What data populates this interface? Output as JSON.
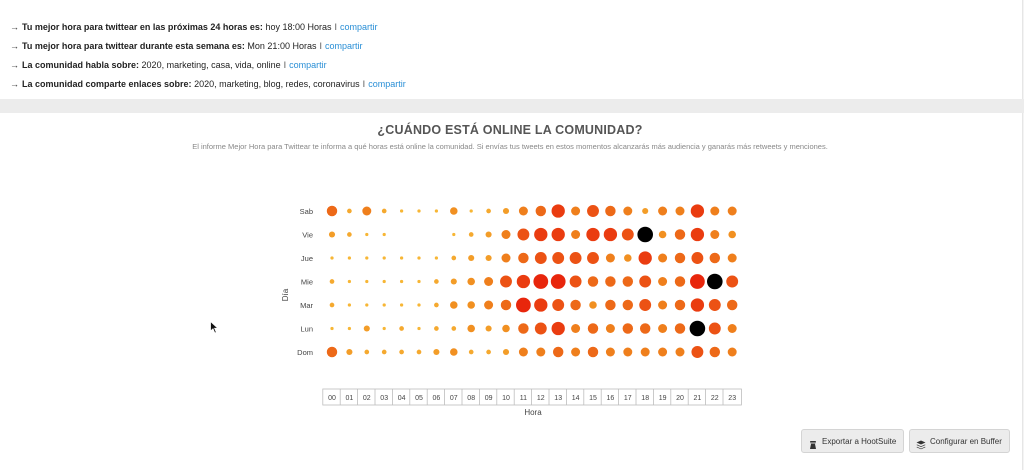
{
  "insights": [
    {
      "arrow": "→",
      "label": "Tu mejor hora para twittear en las próximas 24 horas es:",
      "value": "hoy 18:00 Horas",
      "separator": "I",
      "link": "compartir"
    },
    {
      "arrow": "→",
      "label": "Tu mejor hora para twittear durante esta semana es:",
      "value": "Mon 21:00 Horas",
      "separator": "I",
      "link": "compartir"
    },
    {
      "arrow": "→",
      "label": "La comunidad habla sobre:",
      "value": "2020, marketing, casa, vida, online",
      "separator": "I",
      "link": "compartir"
    },
    {
      "arrow": "→",
      "label": "La comunidad comparte enlaces sobre:",
      "value": "2020, marketing, blog, redes, coronavirus",
      "separator": "I",
      "link": "compartir"
    }
  ],
  "section": {
    "title": "¿CUÁNDO ESTÁ ONLINE LA COMUNIDAD?",
    "description": "El informe Mejor Hora para Twittear te informa a qué horas está online la comunidad. Si envías tus tweets en estos momentos alcanzarás más audiencia y ganarás más retweets y menciones."
  },
  "buttons": {
    "hootsuite": "Exportar a HootSuite",
    "buffer": "Configurar en Buffer"
  },
  "colors": {
    "link": "#2a8fd6",
    "scale_low": "#f9c23c",
    "scale_mid": "#f08a1e",
    "scale_high": "#e8260c",
    "peak": "#000000"
  },
  "chart_data": {
    "type": "heatmap",
    "xlabel": "Hora",
    "ylabel": "Día",
    "x": [
      "00",
      "01",
      "02",
      "03",
      "04",
      "05",
      "06",
      "07",
      "08",
      "09",
      "10",
      "11",
      "12",
      "13",
      "14",
      "15",
      "16",
      "17",
      "18",
      "19",
      "20",
      "21",
      "22",
      "23"
    ],
    "y": [
      "Sab",
      "Vie",
      "Jue",
      "Mie",
      "Mar",
      "Lun",
      "Dom"
    ],
    "scale": "relative activity 0–10 (dot size and colour); black = peak",
    "values": [
      [
        6,
        2,
        5,
        2,
        1,
        1,
        1,
        4,
        1,
        2,
        3,
        5,
        6,
        8,
        5,
        7,
        6,
        5,
        3,
        5,
        5,
        8,
        5,
        5
      ],
      [
        3,
        2,
        1,
        1,
        0,
        0,
        0,
        1,
        2,
        3,
        5,
        7,
        8,
        8,
        5,
        8,
        8,
        7,
        10,
        4,
        6,
        8,
        5,
        4
      ],
      [
        1,
        1,
        1,
        1,
        1,
        1,
        1,
        2,
        3,
        3,
        5,
        6,
        7,
        7,
        7,
        7,
        5,
        4,
        8,
        5,
        6,
        7,
        6,
        5
      ],
      [
        2,
        1,
        1,
        1,
        1,
        1,
        2,
        3,
        4,
        5,
        7,
        8,
        9,
        9,
        7,
        6,
        6,
        6,
        7,
        5,
        6,
        9,
        10,
        7
      ],
      [
        2,
        1,
        1,
        1,
        1,
        1,
        2,
        4,
        4,
        5,
        6,
        9,
        8,
        7,
        6,
        4,
        6,
        6,
        7,
        5,
        6,
        8,
        7,
        6
      ],
      [
        1,
        1,
        3,
        1,
        2,
        1,
        2,
        2,
        4,
        3,
        4,
        6,
        7,
        8,
        5,
        6,
        5,
        6,
        6,
        5,
        6,
        10,
        7,
        5
      ],
      [
        6,
        3,
        2,
        2,
        2,
        2,
        3,
        4,
        2,
        2,
        3,
        5,
        5,
        6,
        5,
        6,
        5,
        5,
        5,
        5,
        5,
        7,
        6,
        5
      ]
    ],
    "peaks": [
      {
        "y": "Vie",
        "x": "18"
      },
      {
        "y": "Mie",
        "x": "22"
      },
      {
        "y": "Lun",
        "x": "21"
      }
    ],
    "grid": false,
    "legend": "none"
  }
}
